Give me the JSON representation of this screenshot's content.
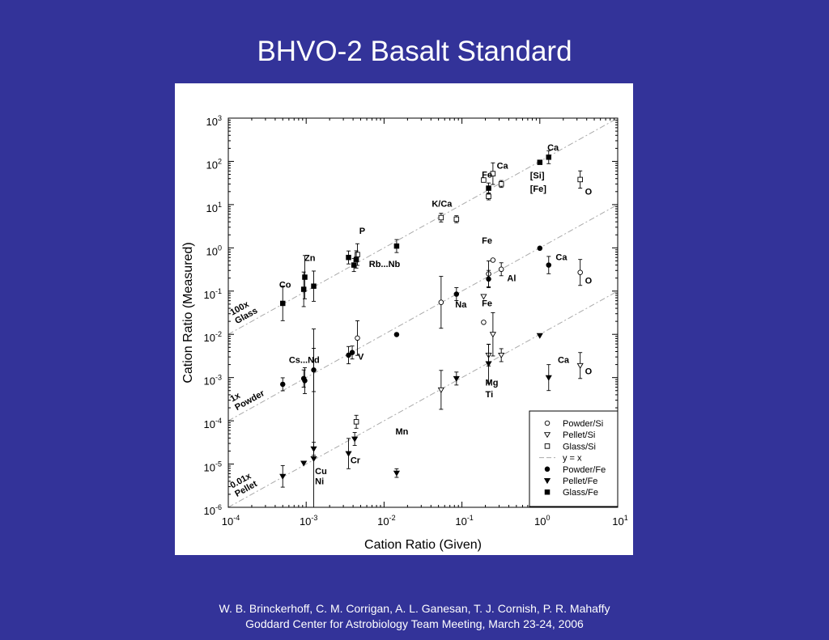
{
  "slide": {
    "title": "BHVO-2 Basalt Standard",
    "footer_line1": "W. B. Brinckerhoff, C. M. Corrigan, A. L. Ganesan, T. J. Cornish, P. R. Mahaffy",
    "footer_line2": "Goddard Center for Astrobiology Team Meeting, March 23-24, 2006",
    "background_color": "#333399",
    "text_color": "#ffffff"
  },
  "chart_data": {
    "type": "scatter",
    "title": "",
    "xlabel": "Cation Ratio (Given)",
    "ylabel": "Cation Ratio (Measured)",
    "xscale": "log",
    "yscale": "log",
    "xlim_exp": [
      -4,
      1
    ],
    "ylim_exp": [
      -6,
      3
    ],
    "x_ticks": [
      {
        "base": "10",
        "exp": "-4"
      },
      {
        "base": "10",
        "exp": "-3"
      },
      {
        "base": "10",
        "exp": "-2"
      },
      {
        "base": "10",
        "exp": "-1"
      },
      {
        "base": "10",
        "exp": "0"
      },
      {
        "base": "10",
        "exp": "1"
      }
    ],
    "y_ticks": [
      {
        "base": "10",
        "exp": "-6"
      },
      {
        "base": "10",
        "exp": "-5"
      },
      {
        "base": "10",
        "exp": "-4"
      },
      {
        "base": "10",
        "exp": "-3"
      },
      {
        "base": "10",
        "exp": "-2"
      },
      {
        "base": "10",
        "exp": "-1"
      },
      {
        "base": "10",
        "exp": "0"
      },
      {
        "base": "10",
        "exp": "1"
      },
      {
        "base": "10",
        "exp": "2"
      },
      {
        "base": "10",
        "exp": "3"
      }
    ],
    "reference_lines": [
      {
        "label1": "100x",
        "label2": "Glass",
        "offset_decades": 2
      },
      {
        "label1": "1x",
        "label2": "Powder",
        "offset_decades": 0
      },
      {
        "label1": "0.01x",
        "label2": "Pellet",
        "offset_decades": -2
      }
    ],
    "legend": {
      "position": "bottom-right",
      "entries": [
        {
          "label": "Powder/Si",
          "marker": "circle-open"
        },
        {
          "label": "Pellet/Si",
          "marker": "triangle-open"
        },
        {
          "label": "Glass/Si",
          "marker": "square-open"
        },
        {
          "label": "y = x",
          "marker": "dash-line"
        },
        {
          "label": "Powder/Fe",
          "marker": "circle-filled"
        },
        {
          "label": "Pellet/Fe",
          "marker": "triangle-filled"
        },
        {
          "label": "Glass/Fe",
          "marker": "square-filled"
        }
      ]
    },
    "series": [
      {
        "name": "Powder/Si",
        "marker": "circle-open",
        "points": [
          {
            "x": 0.00455,
            "y": 0.0082,
            "err": 0.4
          },
          {
            "x": 0.054,
            "y": 0.055,
            "err": 0.6
          },
          {
            "x": 0.19,
            "y": 0.019,
            "err": 0
          },
          {
            "x": 0.25,
            "y": 0.52,
            "err": 0
          },
          {
            "x": 0.22,
            "y": 0.25,
            "err": 0.3
          },
          {
            "x": 0.32,
            "y": 0.32,
            "err": 0.15
          },
          {
            "x": 3.3,
            "y": 0.27,
            "err": 0.3
          }
        ]
      },
      {
        "name": "Pellet/Si",
        "marker": "triangle-open",
        "points": [
          {
            "x": 0.054,
            "y": 0.00052,
            "err": 0.45
          },
          {
            "x": 0.25,
            "y": 0.01,
            "err": 0.5
          },
          {
            "x": 0.22,
            "y": 0.0033,
            "err": 0.25
          },
          {
            "x": 0.32,
            "y": 0.0033,
            "err": 0.15
          },
          {
            "x": 3.3,
            "y": 0.0019,
            "err": 0.3
          },
          {
            "x": 0.19,
            "y": 0.075,
            "err": 0
          }
        ]
      },
      {
        "name": "Glass/Si",
        "marker": "square-open",
        "points": [
          {
            "x": 0.054,
            "y": 5.0,
            "err": 0.1
          },
          {
            "x": 0.085,
            "y": 4.6,
            "err": 0.08
          },
          {
            "x": 0.25,
            "y": 52,
            "err": 0.25
          },
          {
            "x": 0.32,
            "y": 30,
            "err": 0.08
          },
          {
            "x": 0.22,
            "y": 15.5,
            "err": 0.08
          },
          {
            "x": 0.19,
            "y": 37,
            "err": 0
          },
          {
            "x": 3.3,
            "y": 38,
            "err": 0.2
          },
          {
            "x": 0.00455,
            "y": 0.7,
            "err": 0.25
          },
          {
            "x": 0.0044,
            "y": 9.5e-05,
            "err": 0.15
          }
        ]
      },
      {
        "name": "Powder/Fe",
        "marker": "circle-filled",
        "points": [
          {
            "x": 0.0005,
            "y": 0.0007,
            "err": 0.15
          },
          {
            "x": 0.00093,
            "y": 0.00095,
            "err": 0.2
          },
          {
            "x": 0.00096,
            "y": 0.00085,
            "err": 0.3
          },
          {
            "x": 0.00125,
            "y": 0.0015,
            "err": 0.5
          },
          {
            "x": 0.0035,
            "y": 0.0033,
            "err": 0.2
          },
          {
            "x": 0.0039,
            "y": 0.0038,
            "err": 0.15
          },
          {
            "x": 0.0145,
            "y": 0.0099,
            "err": 0
          },
          {
            "x": 0.085,
            "y": 0.085,
            "err": 0.15
          },
          {
            "x": 1.0,
            "y": 0.98,
            "err": 0
          },
          {
            "x": 0.22,
            "y": 0.19,
            "err": 0.2
          },
          {
            "x": 1.3,
            "y": 0.4,
            "err": 0.2
          }
        ]
      },
      {
        "name": "Pellet/Fe",
        "marker": "triangle-filled",
        "points": [
          {
            "x": 0.0005,
            "y": 5.2e-06,
            "err": 0.25
          },
          {
            "x": 0.00093,
            "y": 1.05e-05,
            "err": 0
          },
          {
            "x": 0.00125,
            "y": 2.25e-05,
            "err": 0.15
          },
          {
            "x": 0.00125,
            "y": 1.33e-05,
            "err": 3
          },
          {
            "x": 0.0035,
            "y": 1.75e-05,
            "err": 0.35
          },
          {
            "x": 0.0042,
            "y": 3.8e-05,
            "err": 0.15
          },
          {
            "x": 0.0145,
            "y": 6.2e-06,
            "err": 0.1
          },
          {
            "x": 0.085,
            "y": 0.00095,
            "err": 0.15
          },
          {
            "x": 0.22,
            "y": 0.0021,
            "err": 0.45
          },
          {
            "x": 1.0,
            "y": 0.0094,
            "err": 0
          },
          {
            "x": 1.3,
            "y": 0.001,
            "err": 0.3
          }
        ]
      },
      {
        "name": "Glass/Fe",
        "marker": "square-filled",
        "points": [
          {
            "x": 0.0005,
            "y": 0.052,
            "err": 0.4
          },
          {
            "x": 0.00093,
            "y": 0.11,
            "err": 0.4
          },
          {
            "x": 0.00096,
            "y": 0.21,
            "err": 0.5
          },
          {
            "x": 0.00125,
            "y": 0.13,
            "err": 0.35
          },
          {
            "x": 0.0035,
            "y": 0.6,
            "err": 0.15
          },
          {
            "x": 0.0041,
            "y": 0.4,
            "err": 0.15
          },
          {
            "x": 0.0044,
            "y": 0.54,
            "err": 0.2
          },
          {
            "x": 0.0145,
            "y": 1.1,
            "err": 0.15
          },
          {
            "x": 0.22,
            "y": 24,
            "err": 0.12
          },
          {
            "x": 1.0,
            "y": 95,
            "err": 0
          },
          {
            "x": 1.3,
            "y": 125,
            "err": 0.15
          }
        ]
      }
    ],
    "annotations": [
      {
        "text": "Ca",
        "x": 1.25,
        "y": 180
      },
      {
        "text": "Ca",
        "x": 0.28,
        "y": 68
      },
      {
        "text": "Fe",
        "x": 0.18,
        "y": 42
      },
      {
        "text": "[Si]",
        "x": 0.75,
        "y": 40
      },
      {
        "text": "[Fe]",
        "x": 0.75,
        "y": 20
      },
      {
        "text": "O",
        "x": 3.8,
        "y": 17
      },
      {
        "text": "K/Ca",
        "x": 0.041,
        "y": 9
      },
      {
        "text": "P",
        "x": 0.0048,
        "y": 2.1
      },
      {
        "text": "Fe",
        "x": 0.18,
        "y": 1.25
      },
      {
        "text": "Zn",
        "x": 0.00095,
        "y": 0.5
      },
      {
        "text": "Rb...Nb",
        "x": 0.0064,
        "y": 0.36
      },
      {
        "text": "Ca",
        "x": 1.6,
        "y": 0.52
      },
      {
        "text": "Al",
        "x": 0.38,
        "y": 0.17
      },
      {
        "text": "O",
        "x": 3.8,
        "y": 0.15
      },
      {
        "text": "Co",
        "x": 0.00045,
        "y": 0.12
      },
      {
        "text": "Na",
        "x": 0.082,
        "y": 0.042
      },
      {
        "text": "Fe",
        "x": 0.18,
        "y": 0.045
      },
      {
        "text": "V",
        "x": 0.0046,
        "y": 0.0026
      },
      {
        "text": "Cs...Nd",
        "x": 0.0006,
        "y": 0.0022
      },
      {
        "text": "Ca",
        "x": 1.7,
        "y": 0.0022
      },
      {
        "text": "O",
        "x": 3.8,
        "y": 0.0012
      },
      {
        "text": "Mg",
        "x": 0.2,
        "y": 0.00065
      },
      {
        "text": "Ti",
        "x": 0.2,
        "y": 0.00035
      },
      {
        "text": "Mn",
        "x": 0.014,
        "y": 4.8e-05
      },
      {
        "text": "Cr",
        "x": 0.0037,
        "y": 1.05e-05
      },
      {
        "text": "Cu",
        "x": 0.0013,
        "y": 5.8e-06
      },
      {
        "text": "Ni",
        "x": 0.0013,
        "y": 3.4e-06
      }
    ],
    "grid": false,
    "colors": {
      "panel": "#ffffff",
      "ink": "#000000",
      "ref_line": "#aaaaaa"
    }
  }
}
